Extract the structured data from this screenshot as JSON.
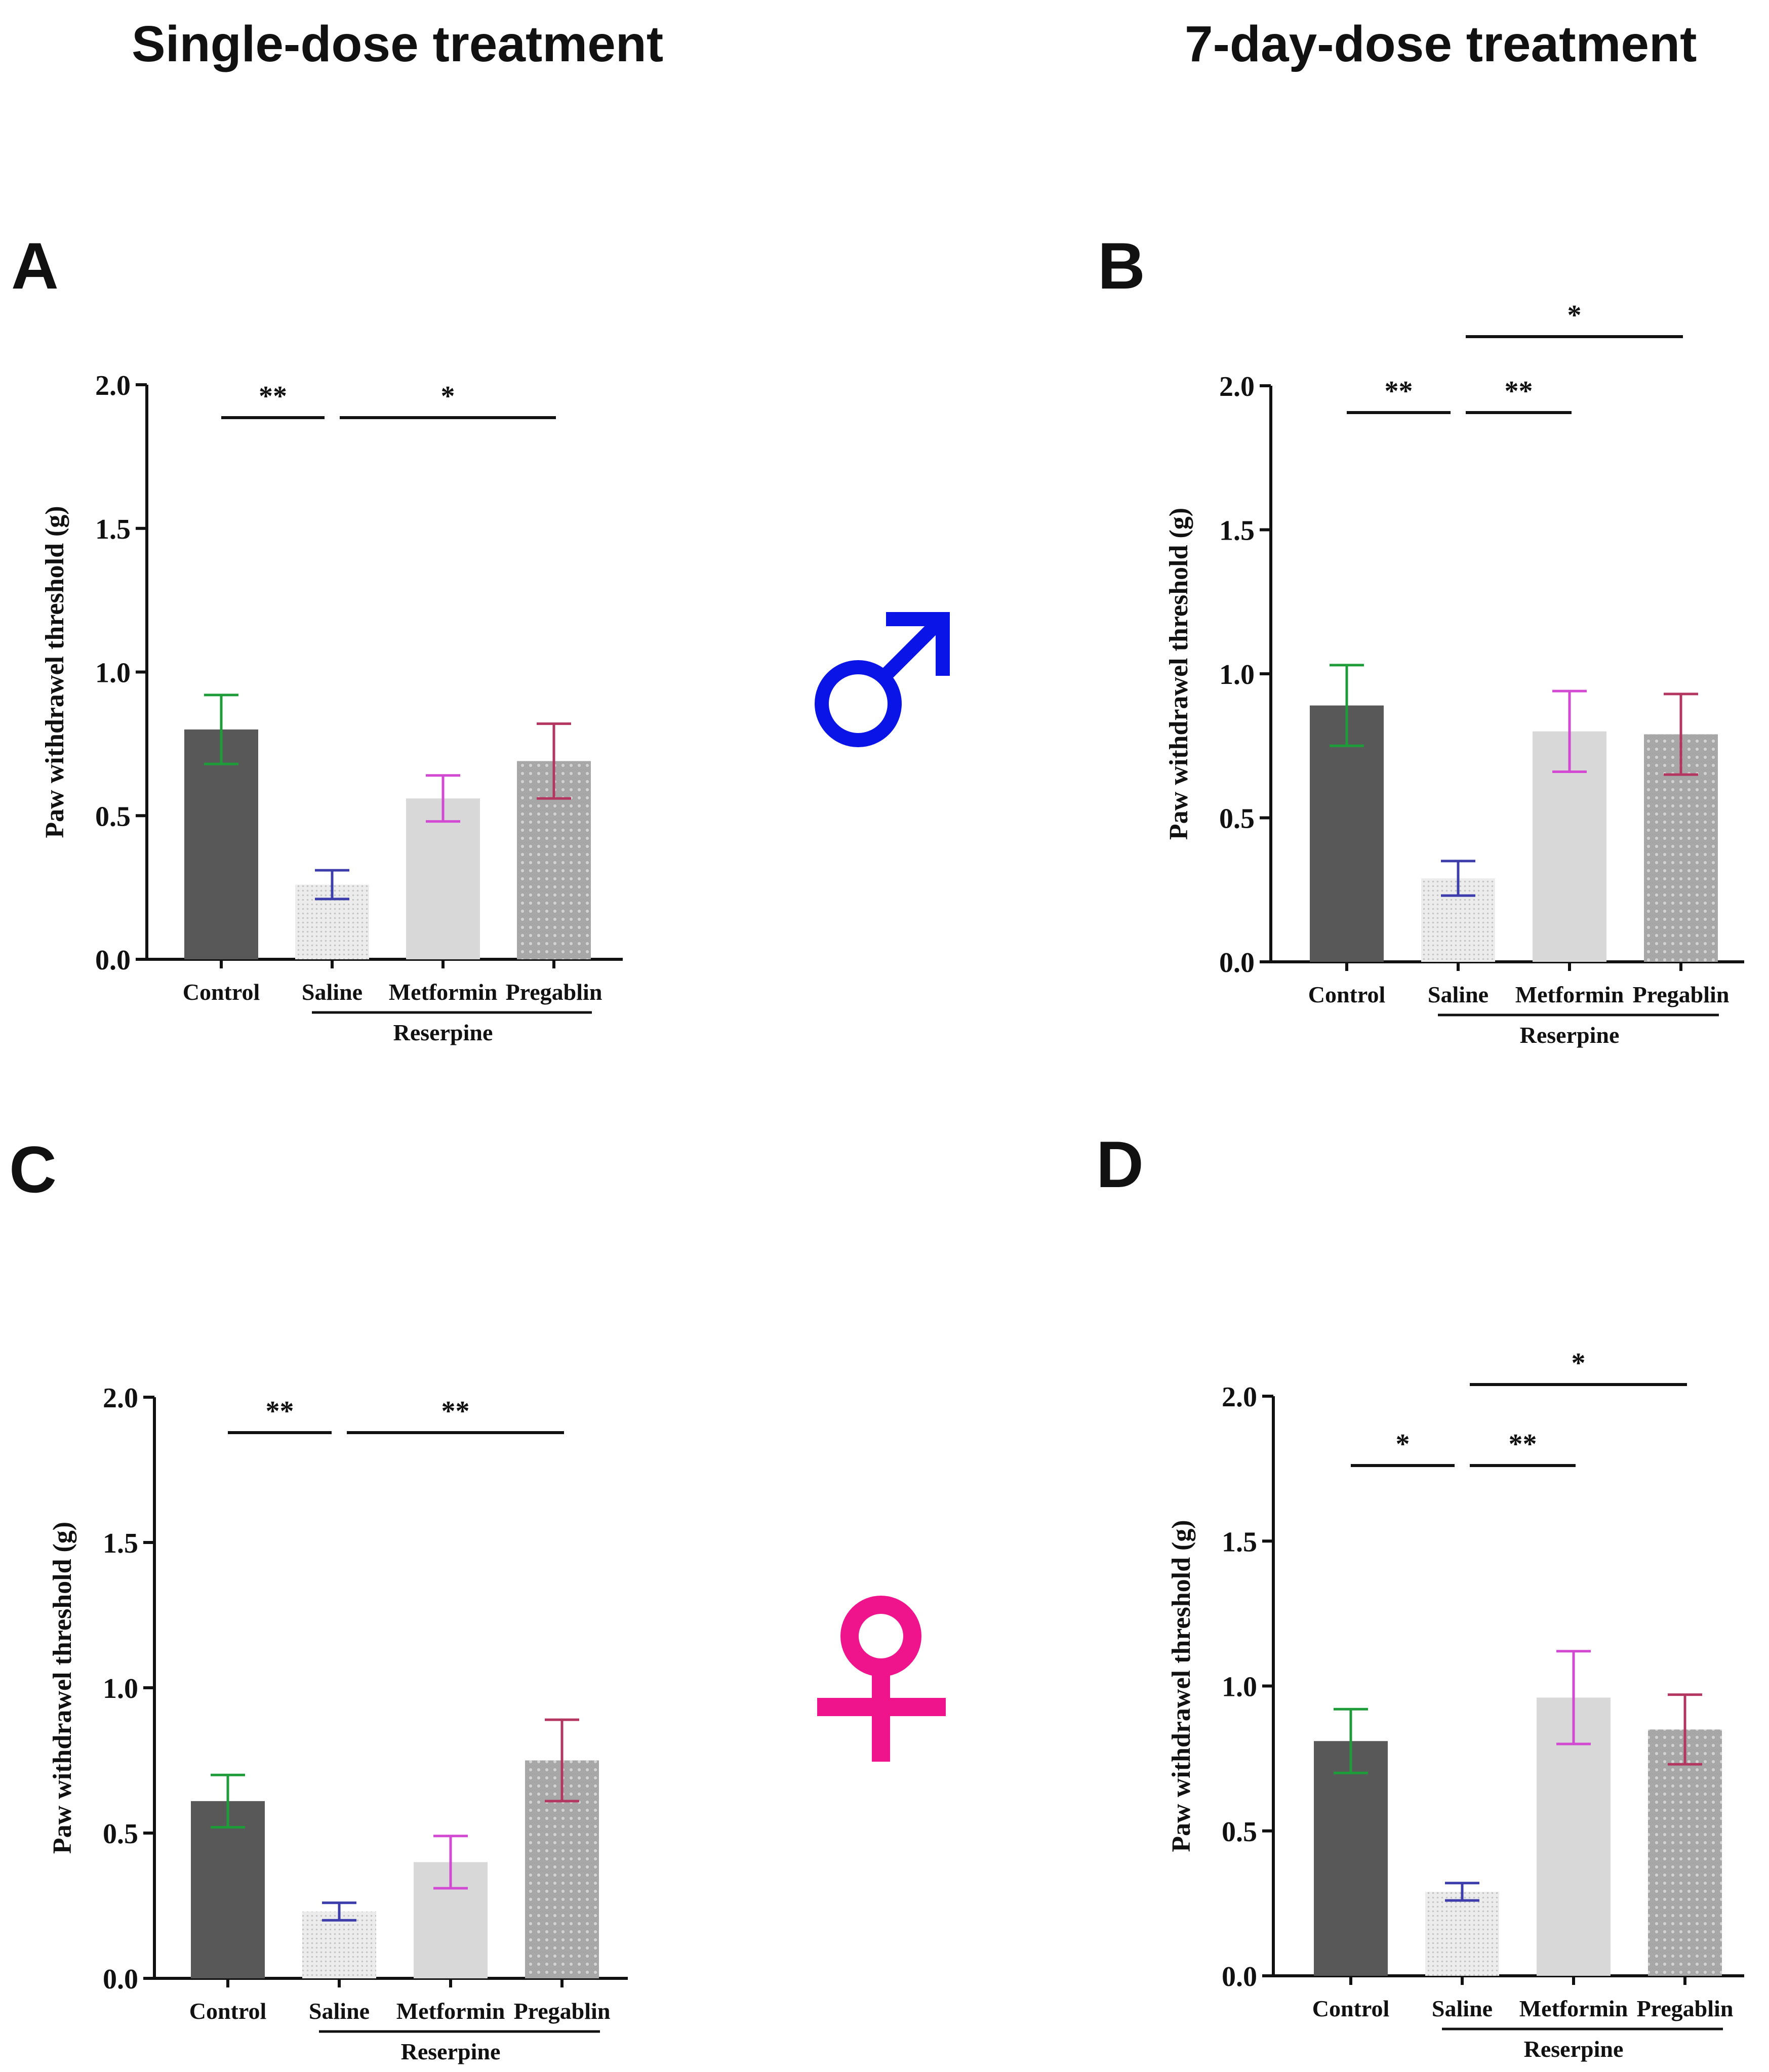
{
  "headings": {
    "left": "Single-dose treatment",
    "right": "7-day-dose treatment"
  },
  "symbols": {
    "male_color": "#0a14e6",
    "female_color": "#f0148c"
  },
  "colors": {
    "bar_control": "#585858",
    "bar_saline": "#ececec",
    "bar_metformin": "#d8d8d8",
    "bar_pregablin": "#a7a7a7",
    "err_control": "#1f9c3a",
    "err_saline": "#3c3caa",
    "err_metformin": "#d24ad2",
    "err_pregablin": "#b23660"
  },
  "chart_data": [
    {
      "panel": "A",
      "type": "bar",
      "categories": [
        "Control",
        "Saline",
        "Metformin",
        "Pregablin"
      ],
      "group_label": "Reserpine",
      "values": [
        0.8,
        0.26,
        0.56,
        0.69
      ],
      "errors": [
        0.12,
        0.05,
        0.08,
        0.13
      ],
      "ylabel": "Paw withdrawel threshold (g)",
      "ylim": [
        0,
        2.0
      ],
      "yticks": [
        "0.0",
        "0.5",
        "1.0",
        "1.5",
        "2.0"
      ],
      "significance": [
        {
          "from": 0,
          "to": 1,
          "label": "**"
        },
        {
          "from": 1,
          "to": 3,
          "label": "*"
        }
      ]
    },
    {
      "panel": "B",
      "type": "bar",
      "categories": [
        "Control",
        "Saline",
        "Metformin",
        "Pregablin"
      ],
      "group_label": "Reserpine",
      "values": [
        0.89,
        0.29,
        0.8,
        0.79
      ],
      "errors": [
        0.14,
        0.06,
        0.14,
        0.14
      ],
      "ylabel": "Paw withdrawel threshold (g)",
      "ylim": [
        0,
        2.0
      ],
      "yticks": [
        "0.0",
        "0.5",
        "1.0",
        "1.5",
        "2.0"
      ],
      "significance": [
        {
          "from": 0,
          "to": 1,
          "label": "**"
        },
        {
          "from": 1,
          "to": 2,
          "label": "**"
        },
        {
          "from": 1,
          "to": 3,
          "label": "*"
        }
      ]
    },
    {
      "panel": "C",
      "type": "bar",
      "categories": [
        "Control",
        "Saline",
        "Metformin",
        "Pregablin"
      ],
      "group_label": "Reserpine",
      "values": [
        0.61,
        0.23,
        0.4,
        0.75
      ],
      "errors": [
        0.09,
        0.03,
        0.09,
        0.14
      ],
      "ylabel": "Paw withdrawel threshold (g)",
      "ylim": [
        0,
        2.0
      ],
      "yticks": [
        "0.0",
        "0.5",
        "1.0",
        "1.5",
        "2.0"
      ],
      "significance": [
        {
          "from": 0,
          "to": 1,
          "label": "**"
        },
        {
          "from": 1,
          "to": 3,
          "label": "**"
        }
      ]
    },
    {
      "panel": "D",
      "type": "bar",
      "categories": [
        "Control",
        "Saline",
        "Metformin",
        "Pregablin"
      ],
      "group_label": "Reserpine",
      "values": [
        0.81,
        0.29,
        0.96,
        0.85
      ],
      "errors": [
        0.11,
        0.03,
        0.16,
        0.12
      ],
      "ylabel": "Paw withdrawel threshold (g)",
      "ylim": [
        0,
        2.0
      ],
      "yticks": [
        "0.0",
        "0.5",
        "1.0",
        "1.5",
        "2.0"
      ],
      "significance": [
        {
          "from": 0,
          "to": 1,
          "label": "*"
        },
        {
          "from": 1,
          "to": 2,
          "label": "**"
        },
        {
          "from": 1,
          "to": 3,
          "label": "*"
        }
      ]
    }
  ]
}
